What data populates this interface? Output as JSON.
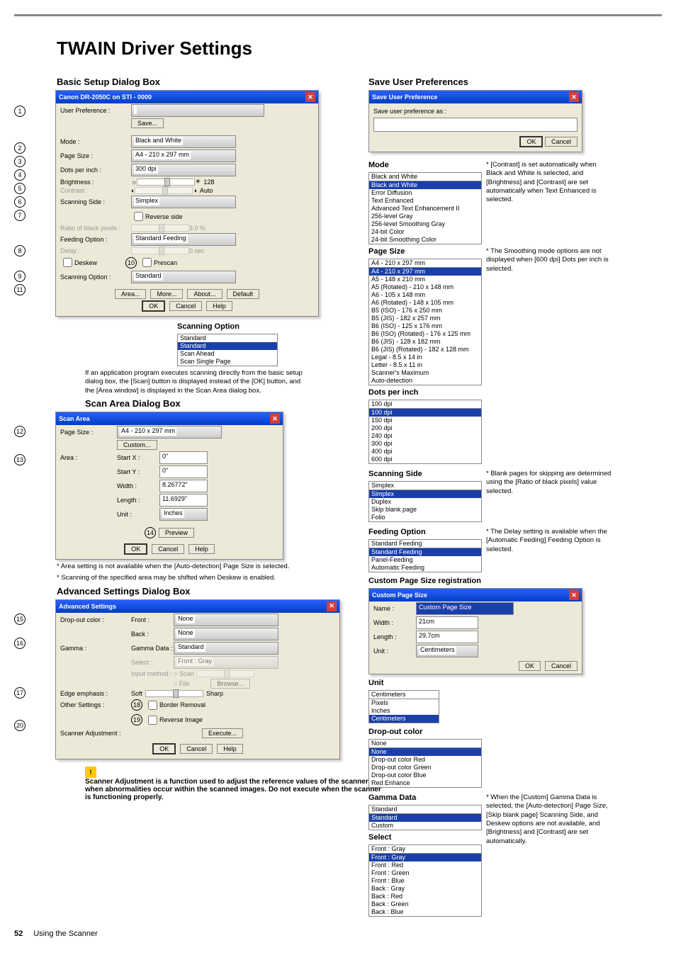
{
  "page_title": "TWAIN Driver Settings",
  "basic_dialog": {
    "section": "Basic Setup Dialog Box",
    "title": "Canon DR-2050C on STI - 0000",
    "fields": {
      "user_pref": "User Preference :",
      "save_btn": "Save...",
      "mode": "Mode :",
      "mode_v": "Black and White",
      "page_size": "Page Size :",
      "page_size_v": "A4 - 210 x 297 mm",
      "dpi": "Dots per inch :",
      "dpi_v": "300 dpi",
      "brightness": "Brightness :",
      "brightness_v": "128",
      "contrast": "Contrast :",
      "contrast_auto": "Auto",
      "scan_side": "Scanning Side :",
      "scan_side_v": "Simplex",
      "reverse": "Reverse side",
      "ratio_black": "Ratio of black pixels :",
      "ratio_v": "3.0 %",
      "feeding": "Feeding Option :",
      "feeding_v": "Standard Feeding",
      "delay": "Delay :",
      "delay_v": "0 sec",
      "deskew": "Deskew",
      "deskew_n": "10",
      "prescan": "Prescan",
      "scan_opt": "Scanning Option :",
      "scan_opt_v": "Standard",
      "area_btn": "Area...",
      "more_btn": "More...",
      "about_btn": "About...",
      "default_btn": "Default",
      "ok": "OK",
      "cancel": "Cancel",
      "help": "Help"
    }
  },
  "scanning_option_popup": {
    "title": "Scanning Option",
    "items": [
      "Standard",
      "Standard",
      "Scan Ahead",
      "Scan Single Page"
    ]
  },
  "basic_note": "If an application program executes scanning directly from the basic setup dialog box, the [Scan] button is displayed instead of the [OK] button, and the [Area window] is displayed in the Scan Area dialog box.",
  "scan_area": {
    "section": "Scan Area Dialog Box",
    "title": "Scan Area",
    "page_size": "Page Size :",
    "page_size_v": "A4 - 210 x 297 mm",
    "custom_btn": "Custom...",
    "area": "Area :",
    "startx": "Start X :",
    "startx_v": "0\"",
    "starty": "Start Y :",
    "starty_v": "0\"",
    "width": "Width :",
    "width_v": "8.26772\"",
    "length": "Length :",
    "length_v": "11.6929\"",
    "unit": "Unit :",
    "unit_v": "Inches",
    "preview_btn": "Preview",
    "ok": "OK",
    "cancel": "Cancel",
    "help": "Help"
  },
  "scan_area_notes": [
    "* Area setting is not available when the [Auto-detection] Page Size is selected.",
    "* Scanning of the specified area may be shifted when Deskew is enabled."
  ],
  "advanced": {
    "section": "Advanced Settings Dialog Box",
    "title": "Advanced Settings",
    "dropout": "Drop-out color :",
    "front": "Front :",
    "front_v": "None",
    "back": "Back :",
    "back_v": "None",
    "gamma": "Gamma :",
    "gamma_data": "Gamma Data :",
    "gamma_v": "Standard",
    "select": "Select :",
    "select_v": "Front : Gray",
    "input_m": "Input method :",
    "scan_r": "Scan",
    "file_r": "File",
    "browse": "Browse...",
    "edge": "Edge emphasis :",
    "soft": "Soft",
    "sharp": "Sharp",
    "other": "Other Settings :",
    "border": "Border Removal",
    "reverse_img": "Reverse Image",
    "scanner_adj": "Scanner Adjustment :",
    "execute": "Execute...",
    "ok": "OK",
    "cancel": "Cancel",
    "help": "Help"
  },
  "warning": "Scanner Adjustment is a function used to adjust the reference values of the scanner when abnormalities occur within the scanned images. Do not execute when the scanner is functioning properly.",
  "save_pref": {
    "section": "Save User Preferences",
    "title": "Save User Preference",
    "label": "Save user preference as :",
    "ok": "OK",
    "cancel": "Cancel"
  },
  "mode_list": {
    "title": "Mode",
    "sel_idx": 1,
    "items": [
      "Black and White",
      "Black and White",
      "Error Diffusion",
      "Text Enhanced",
      "Advanced Text Enhancement II",
      "256-level Gray",
      "256-level Smoothing Gray",
      "24-bit Color",
      "24-bit Smoothing Color"
    ]
  },
  "mode_note": "* [Contrast] is set automatically when Black and White is selected, and [Brightness] and [Contrast] are set automatically when Text Enhanced is selected.",
  "pagesize_list": {
    "title": "Page Size",
    "sel_idx": 1,
    "items": [
      "A4 - 210 x 297 mm",
      "A4 - 210 x 297 mm",
      "A5 - 148 x 210 mm",
      "A5 (Rotated) - 210 x 148 mm",
      "A6 - 105 x 148 mm",
      "A6 (Rotated) - 148 x 105 mm",
      "B5 (ISO) - 176 x 250 mm",
      "B5 (JIS) - 182 x 257 mm",
      "B6 (ISO) - 125 x 176 mm",
      "B6 (ISO) (Rotated) - 176 x 125 mm",
      "B6 (JIS) - 128 x 182 mm",
      "B6 (JIS) (Rotated) - 182 x 128 mm",
      "Legal - 8.5 x 14 in",
      "Letter - 8.5 x 11 in",
      "Scanner's Maximum",
      "Auto-detection"
    ]
  },
  "pagesize_note": "* The Smoothing mode options are not displayed when [600 dpi] Dots per inch is selected.",
  "dpi_list": {
    "title": "Dots per inch",
    "sel_idx": 1,
    "items": [
      "100 dpi",
      "100 dpi",
      "150 dpi",
      "200 dpi",
      "240 dpi",
      "300 dpi",
      "400 dpi",
      "600 dpi"
    ]
  },
  "scanside_list": {
    "title": "Scanning Side",
    "sel_idx": 1,
    "items": [
      "Simplex",
      "Simplex",
      "Duplex",
      "Skip blank page",
      "Folio"
    ]
  },
  "scanside_note": "* Blank pages for skipping are determined using the [Ratio of black pixels] value selected.",
  "feeding_list": {
    "title": "Feeding Option",
    "sel_idx": 1,
    "items": [
      "Standard Feeding",
      "Standard Feeding",
      "Panel-Feeding",
      "Automatic Feeding"
    ]
  },
  "feeding_note": "* The Delay setting is available when the [Automatic Feeding] Feeding Option is selected.",
  "custom_page": {
    "title_section": "Custom Page Size registration",
    "title": "Custom Page Size",
    "name": "Name :",
    "name_v": "Custom Page Size",
    "width": "Width :",
    "width_v": "21cm",
    "length": "Length :",
    "length_v": "29.7cm",
    "unit": "Unit :",
    "unit_v": "Centimeters",
    "ok": "OK",
    "cancel": "Cancel"
  },
  "unit_list": {
    "title": "Unit",
    "sel_idx": 3,
    "items": [
      "Centimeters",
      "Pixels",
      "Inches",
      "Centimeters"
    ]
  },
  "dropout_list": {
    "title": "Drop-out color",
    "sel_idx": 1,
    "items": [
      "None",
      "None",
      "Drop-out color Red",
      "Drop-out color Green",
      "Drop-out color Blue",
      "Red Enhance"
    ]
  },
  "gamma_list": {
    "title": "Gamma Data",
    "sel_idx": 1,
    "items": [
      "Standard",
      "Standard",
      "Custom"
    ]
  },
  "gamma_note": "* When the [Custom] Gamma Data is selected, the [Auto-detection] Page Size, [Skip blank page] Scanning Side, and Deskew options are not available, and [Brightness] and [Contrast] are set automatically.",
  "select_list": {
    "title": "Select",
    "sel_idx": 1,
    "items": [
      "Front : Gray",
      "Front : Gray",
      "Front : Red",
      "Front : Green",
      "Front : Blue",
      "Back : Gray",
      "Back : Red",
      "Back : Green",
      "Back : Blue"
    ]
  },
  "circles": {
    "1": "1",
    "2": "2",
    "3": "3",
    "4": "4",
    "5": "5",
    "6": "6",
    "7": "7",
    "8": "8",
    "9": "9",
    "10": "10",
    "11": "11",
    "12": "12",
    "13": "13",
    "14": "14",
    "15": "15",
    "16": "16",
    "17": "17",
    "18": "18",
    "19": "19",
    "20": "20"
  },
  "footer": {
    "page": "52",
    "text": "Using the Scanner"
  }
}
